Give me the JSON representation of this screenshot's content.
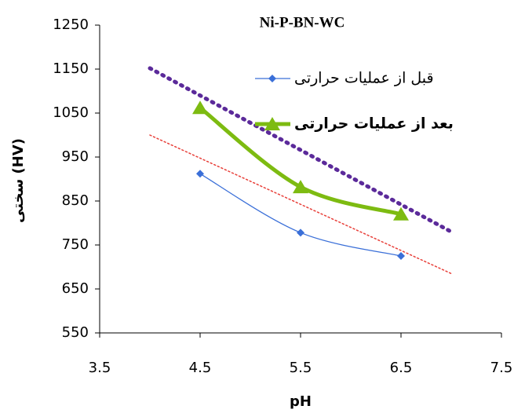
{
  "chart_data": {
    "type": "line",
    "title": "Ni-P-BN-WC",
    "xlabel": "pH",
    "ylabel": "سختی (HV)",
    "xlim": [
      3.5,
      7.5
    ],
    "xticks": [
      3.5,
      4.5,
      5.5,
      6.5,
      7.5
    ],
    "ylim": [
      550,
      1250
    ],
    "yticks": [
      550,
      650,
      750,
      850,
      950,
      1050,
      1150,
      1250
    ],
    "series": [
      {
        "name": "قبل از عملیات حرارتی",
        "color": "#3a6fd8",
        "marker": "diamond",
        "x": [
          4.5,
          5.5,
          6.5
        ],
        "values": [
          912,
          778,
          725
        ]
      },
      {
        "name": "بعد از عملیات حرارتی",
        "color": "#7dbb11",
        "marker": "triangle",
        "x": [
          4.5,
          5.5,
          6.5
        ],
        "values": [
          1062,
          882,
          820
        ]
      }
    ],
    "trendlines": [
      {
        "color": "#e8403a",
        "x": [
          4,
          7
        ],
        "values": [
          1000,
          685
        ]
      },
      {
        "color": "#5b2a9a",
        "x": [
          4,
          7
        ],
        "values": [
          1152,
          780
        ]
      }
    ]
  }
}
